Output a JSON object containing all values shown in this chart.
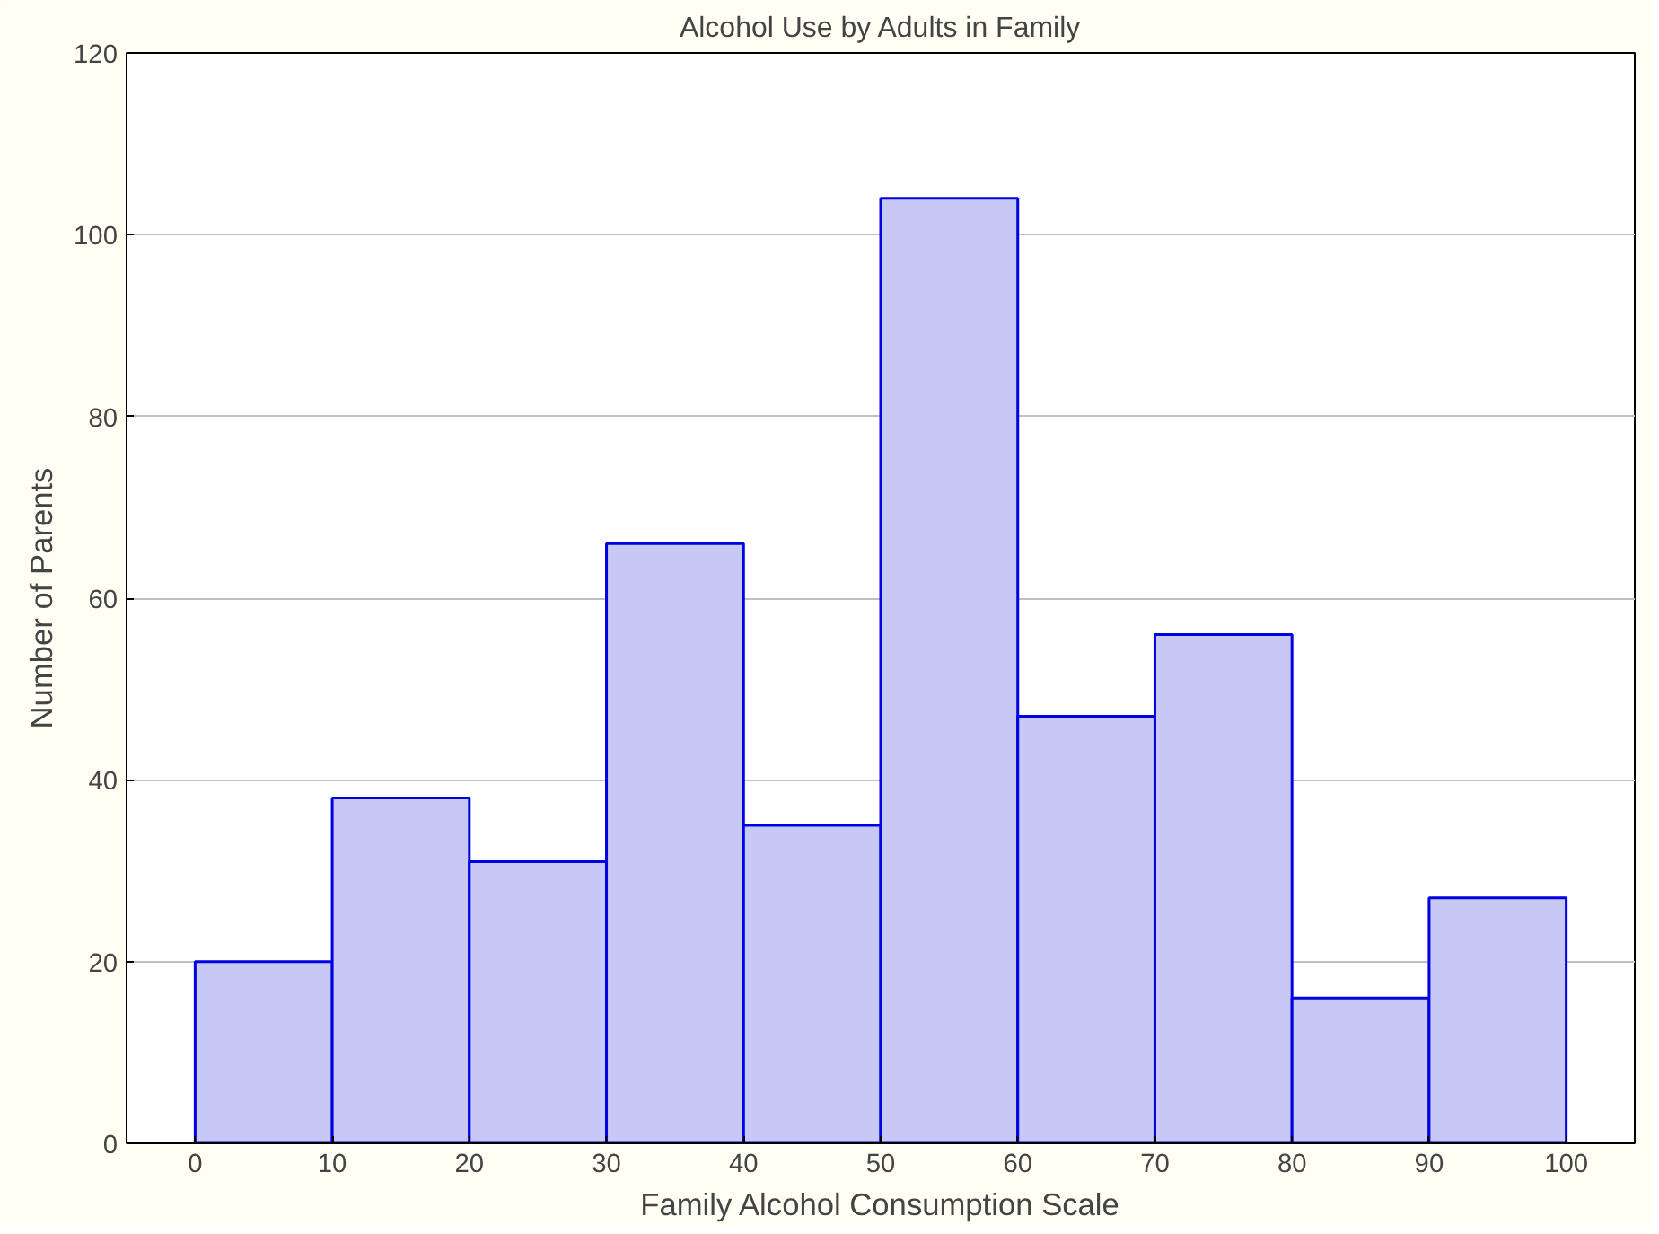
{
  "chart_data": {
    "type": "histogram",
    "title": "Alcohol Use by Adults in Family",
    "xlabel": "Family Alcohol Consumption Scale",
    "ylabel": "Number of Parents",
    "bins": [
      0,
      10,
      20,
      30,
      40,
      50,
      60,
      70,
      80,
      90,
      100
    ],
    "values": [
      20,
      38,
      31,
      66,
      35,
      104,
      47,
      56,
      16,
      27
    ],
    "color": "#c8c8f4",
    "xlim": [
      -5,
      105
    ],
    "ylim": [
      0,
      120
    ],
    "xticks": [
      0,
      10,
      20,
      30,
      40,
      50,
      60,
      70,
      80,
      90,
      100
    ],
    "yticks": [
      0,
      20,
      40,
      60,
      80,
      100,
      120
    ],
    "grid": "y"
  }
}
